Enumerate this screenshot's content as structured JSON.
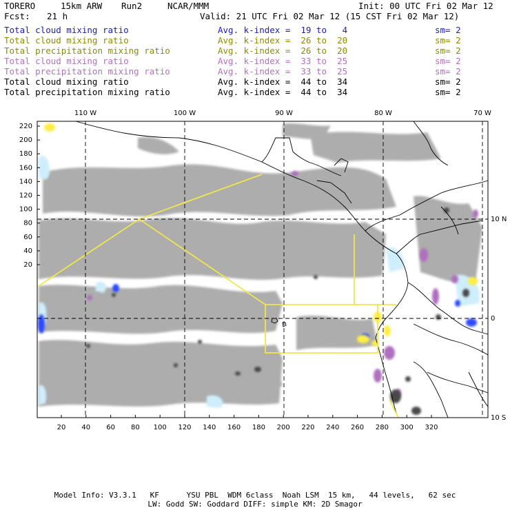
{
  "header": {
    "model": "TORERO",
    "resolution": "15km ARW",
    "run": "Run2",
    "org": "NCAR/MMM",
    "init": "Init: 00 UTC Fri 02 Mar 12",
    "fcst_label": "Fcst:",
    "fcst_hours": "21 h",
    "valid": "Valid: 21 UTC Fri 02 Mar 12 (15 CST Fri 02 Mar 12)"
  },
  "legend": [
    {
      "name": "Total cloud mixing ratio",
      "index": "Avg. k-index =  19 to   4",
      "sm": "sm= 2",
      "color": "#1a1acc"
    },
    {
      "name": "Total cloud mixing ratio",
      "index": "Avg. k-index =  26 to  20",
      "sm": "sm= 2",
      "color": "#8c8c00"
    },
    {
      "name": "Total precipitation mixing ratio",
      "index": "Avg. k-index =  26 to  20",
      "sm": "sm= 2",
      "color": "#8c8c00"
    },
    {
      "name": "Total cloud mixing ratio",
      "index": "Avg. k-index =  33 to  25",
      "sm": "sm= 2",
      "color": "#b070c0"
    },
    {
      "name": "Total precipitation mixing ratio",
      "index": "Avg. k-index =  33 to  25",
      "sm": "sm= 2",
      "color": "#b070c0"
    },
    {
      "name": "Total cloud mixing ratio",
      "index": "Avg. k-index =  44 to  34",
      "sm": "sm= 2",
      "color": "#000000"
    },
    {
      "name": "Total precipitation mixing ratio",
      "index": "Avg. k-index =  44 to  34",
      "sm": "sm= 2",
      "color": "#000000"
    }
  ],
  "map": {
    "top_lon_labels": [
      "110 W",
      "100 W",
      "90 W",
      "80 W",
      "70 W"
    ],
    "right_lat_labels": [
      "10 N",
      "0",
      "10 S"
    ],
    "y_ticks": [
      "220",
      "200",
      "180",
      "160",
      "140",
      "120",
      "100",
      "80",
      "60",
      "40",
      "20"
    ],
    "x_ticks": [
      "20",
      "40",
      "60",
      "80",
      "100",
      "120",
      "140",
      "160",
      "180",
      "200",
      "220",
      "240",
      "260",
      "280",
      "300",
      "320"
    ],
    "colors": {
      "cloud_gray": "#a8a8a8",
      "cloud_dark": "#505050",
      "light_blue": "#cfeefb",
      "blue": "#2040ff",
      "yellow": "#ffee44",
      "purple": "#b070c0",
      "boundary_yellow": "#f2e64a"
    }
  },
  "footer": {
    "line1": "Model Info: V3.3.1   KF      YSU PBL  WDM 6class  Noah LSM  15 km,   44 levels,   62 sec",
    "line2": "LW: Godd SW: Goddard DIFF: simple KM: 2D Smagor"
  }
}
